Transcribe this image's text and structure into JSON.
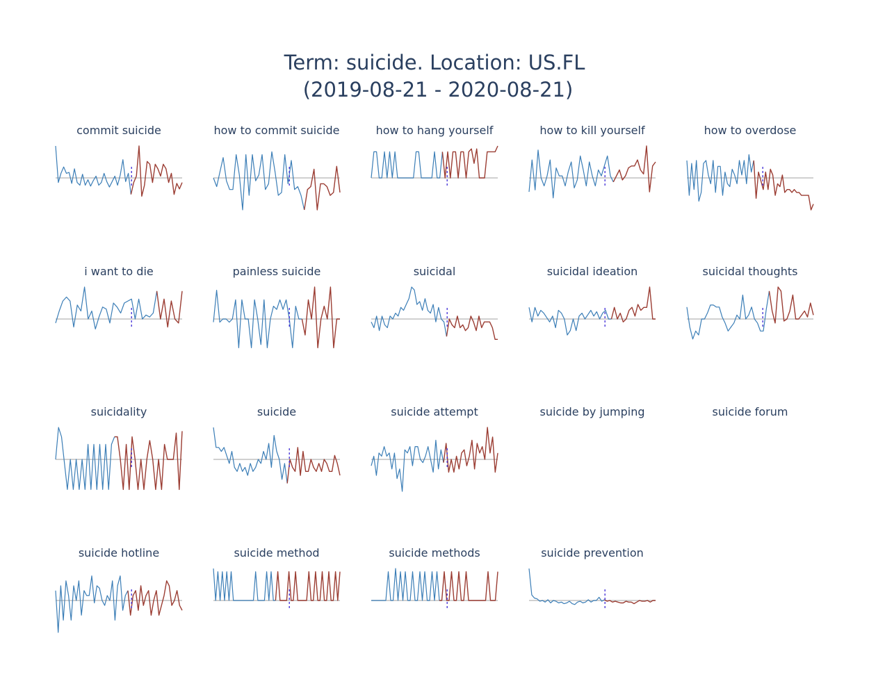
{
  "chart_data": {
    "type": "line",
    "title_lines": [
      "Term: suicide. Location: US.FL",
      "(2019-08-21 - 2020-08-21)"
    ],
    "colors": {
      "before": "#3a7db6",
      "after": "#9b3d33",
      "baseline": "#c0c0c0",
      "divider": "#3d2bd6",
      "title": "#2a3f5f"
    },
    "panels": [
      {
        "name": "commit suicide",
        "divider_index": 28,
        "values": [
          0.35,
          -0.05,
          0.05,
          0.12,
          0.05,
          0.06,
          -0.06,
          0.1,
          -0.05,
          -0.08,
          0.04,
          -0.08,
          -0.02,
          -0.09,
          -0.03,
          0.02,
          -0.08,
          -0.05,
          0.05,
          -0.04,
          -0.1,
          -0.04,
          0.02,
          -0.08,
          0.03,
          0.2,
          -0.04,
          0.05,
          -0.18,
          -0.05,
          0.02,
          0.35,
          -0.2,
          -0.08,
          0.18,
          0.15,
          -0.05,
          0.15,
          0.1,
          0.02,
          0.15,
          0.1,
          -0.05,
          0.05,
          -0.18,
          -0.06,
          -0.12,
          -0.05
        ]
      },
      {
        "name": "how to commit suicide",
        "divider_index": 28,
        "values": [
          0.0,
          -0.15,
          0.1,
          0.35,
          -0.05,
          -0.2,
          -0.2,
          0.4,
          0.05,
          -0.55,
          0.4,
          -0.3,
          0.4,
          -0.05,
          0.05,
          0.4,
          -0.2,
          -0.1,
          0.45,
          0.1,
          -0.3,
          -0.25,
          0.4,
          -0.1,
          0.3,
          -0.2,
          -0.15,
          -0.3,
          -0.55,
          -0.2,
          -0.15,
          0.15,
          -0.55,
          -0.1,
          -0.1,
          -0.15,
          -0.3,
          -0.25,
          0.2,
          -0.25
        ]
      },
      {
        "name": "how to hang yourself",
        "divider_index": 27,
        "values": [
          0,
          0.9,
          0.9,
          0,
          0,
          0.9,
          0,
          0.9,
          0,
          0.9,
          0,
          0,
          0,
          0,
          0,
          0,
          0,
          0.9,
          0.9,
          0,
          0,
          0,
          0,
          0,
          0.9,
          0,
          0,
          0.9,
          0,
          0.9,
          0,
          0.9,
          0.9,
          0,
          0.9,
          0.9,
          0,
          0.9,
          1.0,
          0.5,
          1.0,
          0,
          0,
          0,
          0.9,
          0.9,
          0.9,
          0.9,
          1.1
        ]
      },
      {
        "name": "how to kill yourself",
        "divider_index": 28,
        "values": [
          -0.35,
          0.45,
          -0.3,
          0.7,
          0.0,
          -0.2,
          0.05,
          0.45,
          -0.5,
          0.25,
          0.05,
          0.05,
          -0.2,
          0.15,
          0.4,
          -0.25,
          -0.05,
          0.55,
          0.2,
          -0.2,
          0.4,
          0.05,
          -0.2,
          0.2,
          0.05,
          0.3,
          0.55,
          0.05,
          -0.1,
          0.05,
          0.2,
          -0.05,
          0.05,
          0.25,
          0.3,
          0.3,
          0.45,
          0.2,
          0.1,
          0.8,
          -0.35,
          0.3,
          0.4
        ]
      },
      {
        "name": "how to overdose",
        "divider_index": 28,
        "values": [
          0.3,
          -0.3,
          0.25,
          -0.2,
          0.3,
          -0.4,
          -0.25,
          0.25,
          0.3,
          0.05,
          -0.1,
          0.3,
          -0.25,
          0.2,
          0.2,
          -0.3,
          0.1,
          -0.1,
          -0.15,
          0.15,
          0.05,
          -0.1,
          0.3,
          0.05,
          0.3,
          -0.1,
          0.4,
          0.1,
          0.3,
          -0.35,
          0.1,
          -0.05,
          -0.2,
          0.1,
          -0.2,
          0.15,
          0.05,
          -0.3,
          -0.1,
          -0.15,
          0.05,
          -0.25,
          -0.2,
          -0.2,
          -0.25,
          -0.2,
          -0.25,
          -0.25,
          -0.3,
          -0.3,
          -0.3,
          -0.3,
          -0.55,
          -0.45
        ]
      },
      {
        "name": "i want to die",
        "divider_index": 28,
        "values": [
          -0.1,
          0.2,
          0.45,
          0.55,
          0.45,
          -0.2,
          0.35,
          0.2,
          0.8,
          0.0,
          0.2,
          -0.25,
          0.05,
          0.3,
          0.25,
          -0.1,
          0.4,
          0.3,
          0.15,
          0.4,
          0.45,
          0.5,
          0.0,
          0.5,
          0.0,
          0.1,
          0.05,
          0.15,
          0.7,
          0.0,
          0.5,
          -0.2,
          0.45,
          0.0,
          -0.1,
          0.7
        ]
      },
      {
        "name": "painless suicide",
        "divider_index": 28,
        "values": [
          -0.1,
          0.9,
          -0.1,
          0.0,
          0.0,
          -0.1,
          0.0,
          0.6,
          -0.9,
          0.6,
          0.0,
          0.0,
          -0.9,
          0.6,
          0.0,
          -0.8,
          0.6,
          -0.9,
          0.0,
          0.4,
          0.3,
          0.6,
          0.3,
          0.6,
          0.0,
          -0.9,
          0.4,
          0.0,
          0.0,
          -0.5,
          0.6,
          0.0,
          1.0,
          -0.9,
          0.0,
          0.4,
          0.0,
          1.0,
          -0.9,
          0.0,
          0.0
        ]
      },
      {
        "name": "suicidal",
        "divider_index": 28,
        "values": [
          -0.05,
          -0.15,
          0.05,
          -0.2,
          0.05,
          -0.1,
          -0.15,
          0.05,
          0.0,
          0.1,
          0.05,
          0.2,
          0.15,
          0.25,
          0.35,
          0.55,
          0.5,
          0.25,
          0.3,
          0.15,
          0.35,
          0.15,
          0.1,
          0.25,
          -0.05,
          0.2,
          0.0,
          -0.05,
          -0.3,
          0.0,
          -0.1,
          -0.15,
          0.05,
          -0.15,
          -0.1,
          -0.2,
          -0.15,
          0.05,
          -0.05,
          -0.2,
          0.05,
          -0.15,
          -0.05,
          -0.05,
          -0.05,
          -0.15,
          -0.35,
          -0.35
        ]
      },
      {
        "name": "suicidal ideation",
        "divider_index": 28,
        "values": [
          0.4,
          -0.1,
          0.4,
          0.1,
          0.3,
          0.2,
          0.05,
          -0.1,
          0.1,
          -0.3,
          0.3,
          0.2,
          0.0,
          -0.55,
          -0.4,
          0.0,
          -0.4,
          0.1,
          0.2,
          0.0,
          0.15,
          0.3,
          0.1,
          0.25,
          0.0,
          0.2,
          0.3,
          0.0,
          0.0,
          0.4,
          0.0,
          0.2,
          -0.1,
          0.0,
          0.3,
          0.4,
          0.1,
          0.5,
          0.3,
          0.4,
          0.4,
          1.1,
          0.0,
          0.0
        ]
      },
      {
        "name": "suicidal thoughts",
        "divider_index": 28,
        "values": [
          0.3,
          -0.2,
          -0.5,
          -0.3,
          -0.4,
          0.0,
          0.0,
          0.15,
          0.35,
          0.35,
          0.3,
          0.3,
          0.05,
          -0.1,
          -0.3,
          -0.2,
          -0.1,
          0.1,
          0.0,
          0.6,
          0.0,
          0.1,
          0.3,
          0.0,
          -0.1,
          -0.3,
          -0.3,
          0.25,
          0.7,
          0.2,
          -0.1,
          0.8,
          0.7,
          -0.05,
          0.0,
          0.2,
          0.6,
          0.0,
          0.0,
          0.1,
          0.2,
          0.05,
          0.4,
          0.1
        ]
      },
      {
        "name": "suicidality",
        "divider_index": 20,
        "values": [
          0.0,
          0.85,
          0.6,
          -0.1,
          -0.8,
          0.0,
          -0.8,
          0.0,
          -0.8,
          0.0,
          -0.8,
          0.4,
          -0.8,
          0.4,
          -0.8,
          0.4,
          -0.8,
          0.4,
          -0.8,
          0.4,
          0.6,
          0.6,
          0.0,
          -0.8,
          0.4,
          -0.8,
          0.6,
          0.0,
          -0.8,
          0.0,
          -0.8,
          0.0,
          0.5,
          0.0,
          -0.8,
          0.0,
          -0.8,
          0.4,
          0.0,
          0.0,
          0.0,
          0.7,
          -0.8,
          0.75
        ]
      },
      {
        "name": "suicide",
        "divider_index": 28,
        "values": [
          0.4,
          0.15,
          0.15,
          0.1,
          0.15,
          0.05,
          -0.05,
          0.1,
          -0.1,
          -0.15,
          -0.05,
          -0.15,
          -0.1,
          -0.2,
          -0.05,
          -0.15,
          -0.1,
          0.0,
          -0.05,
          0.1,
          0.0,
          0.2,
          -0.1,
          0.3,
          0.1,
          0.0,
          -0.25,
          -0.05,
          -0.3,
          0.0,
          -0.1,
          -0.15,
          0.15,
          -0.2,
          0.1,
          -0.15,
          -0.15,
          0.0,
          -0.1,
          -0.15,
          -0.05,
          -0.15,
          0.0,
          -0.05,
          -0.15,
          -0.15,
          0.05,
          -0.05,
          -0.2
        ]
      },
      {
        "name": "suicide attempt",
        "divider_index": 28,
        "values": [
          -0.2,
          0.1,
          -0.5,
          0.2,
          0.1,
          0.4,
          0.1,
          0.2,
          -0.3,
          0.2,
          -0.6,
          -0.3,
          -1.0,
          0.3,
          0.2,
          0.4,
          -0.2,
          0.4,
          0.4,
          0.0,
          -0.1,
          0.1,
          0.4,
          0.0,
          -0.4,
          0.6,
          -0.3,
          0.3,
          -0.1,
          0.5,
          -0.4,
          0.0,
          -0.4,
          0.1,
          -0.3,
          0.2,
          0.3,
          -0.2,
          0.1,
          0.6,
          -0.3,
          0.5,
          0.2,
          0.4,
          0.0,
          1.0,
          0.2,
          0.7,
          -0.4,
          0.2
        ]
      },
      {
        "name": "suicide by jumping",
        "divider_index": null,
        "values": []
      },
      {
        "name": "suicide forum",
        "divider_index": null,
        "values": []
      },
      {
        "name": "suicide hotline",
        "divider_index": 28,
        "values": [
          0.2,
          -0.65,
          0.3,
          -0.4,
          0.4,
          0.1,
          -0.4,
          0.3,
          0.0,
          0.4,
          -0.3,
          0.2,
          0.1,
          0.1,
          0.5,
          -0.05,
          0.3,
          0.25,
          0.0,
          -0.1,
          0.1,
          0.0,
          0.4,
          -0.4,
          0.3,
          0.5,
          -0.2,
          0.1,
          0.2,
          -0.3,
          0.1,
          0.2,
          -0.2,
          0.3,
          -0.1,
          0.1,
          0.2,
          -0.3,
          0.0,
          0.2,
          -0.3,
          -0.1,
          0.1,
          0.4,
          0.3,
          -0.1,
          0.0,
          0.2,
          -0.1,
          -0.2
        ]
      },
      {
        "name": "suicide method",
        "divider_index": 28,
        "values": [
          1.0,
          0.0,
          0.9,
          0.0,
          0.9,
          0.0,
          0.9,
          0.0,
          0.9,
          0.0,
          0.0,
          0.0,
          0.0,
          0.0,
          0.0,
          0.0,
          0.0,
          0.0,
          0.0,
          0.9,
          0.0,
          0.0,
          0.0,
          0.0,
          0.9,
          0.0,
          0.9,
          0.0,
          0.0,
          0.9,
          0.0,
          0.0,
          0.0,
          0.0,
          0.9,
          0.0,
          0.0,
          0.9,
          0.0,
          0.0,
          0.0,
          0.0,
          0.0,
          0.9,
          0.0,
          0.0,
          0.9,
          0.0,
          0.0,
          0.9,
          0.0,
          0.0,
          0.9,
          0.0,
          0.0,
          0.9,
          0.0,
          0.9
        ]
      },
      {
        "name": "suicide methods",
        "divider_index": 28,
        "values": [
          0.0,
          0.0,
          0.0,
          0.0,
          0.0,
          0.0,
          0.0,
          0.9,
          0.0,
          0.0,
          1.0,
          0.0,
          0.9,
          0.0,
          0.9,
          0.0,
          0.0,
          0.9,
          0.0,
          0.0,
          0.9,
          0.0,
          0.9,
          0.0,
          0.0,
          0.9,
          0.0,
          0.9,
          0.0,
          0.0,
          0.9,
          0.0,
          0.0,
          0.9,
          0.0,
          0.0,
          0.9,
          0.0,
          0.0,
          0.9,
          0.0,
          0.0,
          0.0,
          0.0,
          0.0,
          0.0,
          0.0,
          0.0,
          0.9,
          0.0,
          0.0,
          0.0,
          0.9
        ]
      },
      {
        "name": "suicide prevention",
        "divider_index": 28,
        "values": [
          2.0,
          0.35,
          0.15,
          0.1,
          -0.05,
          0.0,
          -0.1,
          0.05,
          -0.15,
          0.0,
          -0.05,
          -0.15,
          -0.1,
          -0.2,
          -0.15,
          -0.05,
          -0.2,
          -0.25,
          -0.1,
          -0.05,
          -0.15,
          -0.1,
          0.05,
          -0.1,
          0.0,
          0.0,
          0.2,
          -0.05,
          0.05,
          -0.05,
          0.0,
          -0.1,
          -0.05,
          -0.1,
          -0.15,
          -0.15,
          -0.05,
          -0.1,
          -0.1,
          -0.2,
          -0.1,
          0.0,
          -0.05,
          -0.05,
          0.0,
          -0.1,
          0.0,
          0.0
        ]
      }
    ]
  }
}
